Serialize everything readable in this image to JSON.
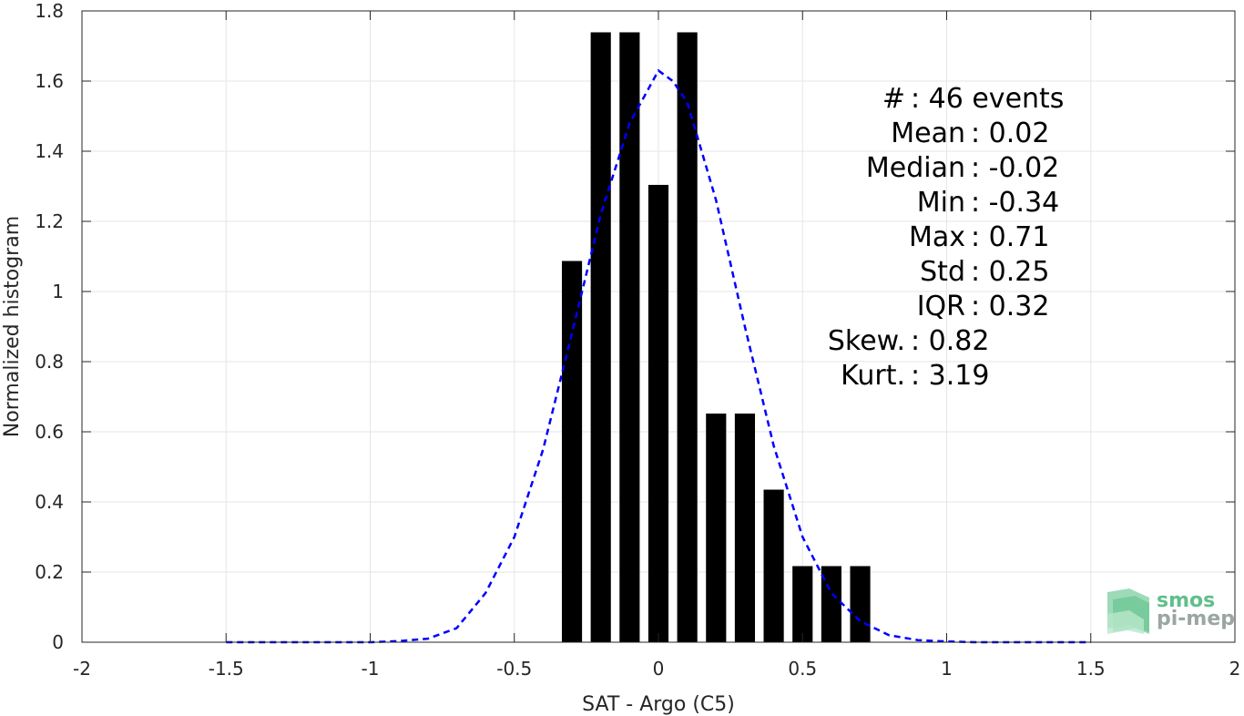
{
  "chart_data": {
    "type": "bar",
    "xlabel": "SAT - Argo (C5)",
    "ylabel": "Normalized histogram",
    "xlim": [
      -2,
      2
    ],
    "ylim": [
      0,
      1.8
    ],
    "x_ticks": [
      "-2",
      "-1.5",
      "-1",
      "-0.5",
      "0",
      "0.5",
      "1",
      "1.5",
      "2"
    ],
    "y_ticks": [
      "0",
      "0.2",
      "0.4",
      "0.6",
      "0.8",
      "1",
      "1.2",
      "1.4",
      "1.6",
      "1.8"
    ],
    "grid": true,
    "bar_width": 0.07,
    "bars": {
      "x": [
        -0.3,
        -0.2,
        -0.1,
        0.0,
        0.1,
        0.2,
        0.3,
        0.4,
        0.5,
        0.6,
        0.7
      ],
      "values": [
        1.087,
        1.739,
        1.739,
        1.304,
        1.739,
        0.652,
        0.652,
        0.435,
        0.217,
        0.217,
        0.217
      ],
      "color": "#000000"
    },
    "fit_curve": {
      "style": "dashed",
      "color": "#0000ff",
      "x": [
        -1.5,
        -1.4,
        -1.3,
        -1.2,
        -1.1,
        -1.0,
        -0.9,
        -0.8,
        -0.7,
        -0.6,
        -0.5,
        -0.4,
        -0.3,
        -0.2,
        -0.1,
        0.0,
        0.05,
        0.1,
        0.2,
        0.3,
        0.4,
        0.5,
        0.6,
        0.7,
        0.8,
        0.9,
        1.0,
        1.1,
        1.2,
        1.3,
        1.4,
        1.5
      ],
      "y": [
        0.0,
        0.0,
        0.0,
        0.0,
        0.0,
        0.0,
        0.003,
        0.01,
        0.04,
        0.14,
        0.3,
        0.55,
        0.88,
        1.22,
        1.48,
        1.63,
        1.6,
        1.54,
        1.26,
        0.9,
        0.56,
        0.3,
        0.14,
        0.06,
        0.02,
        0.006,
        0.002,
        0.0,
        0.0,
        0.0,
        0.0,
        0.0
      ]
    },
    "annotations": [
      "#  : 46 events",
      "Mean : 0.02",
      "Median : -0.02",
      "Min : -0.34",
      "Max : 0.71",
      "Std : 0.25",
      "IQR : 0.32",
      "Skew. : 0.82",
      "Kurt. : 3.19"
    ]
  },
  "logo": {
    "line1": "smos",
    "line2": "pi-mep"
  },
  "colors": {
    "axis": "#262626",
    "grid": "#e5e5e5",
    "logo_green": "#5fbf8a",
    "logo_gray": "#9aa7a0"
  }
}
